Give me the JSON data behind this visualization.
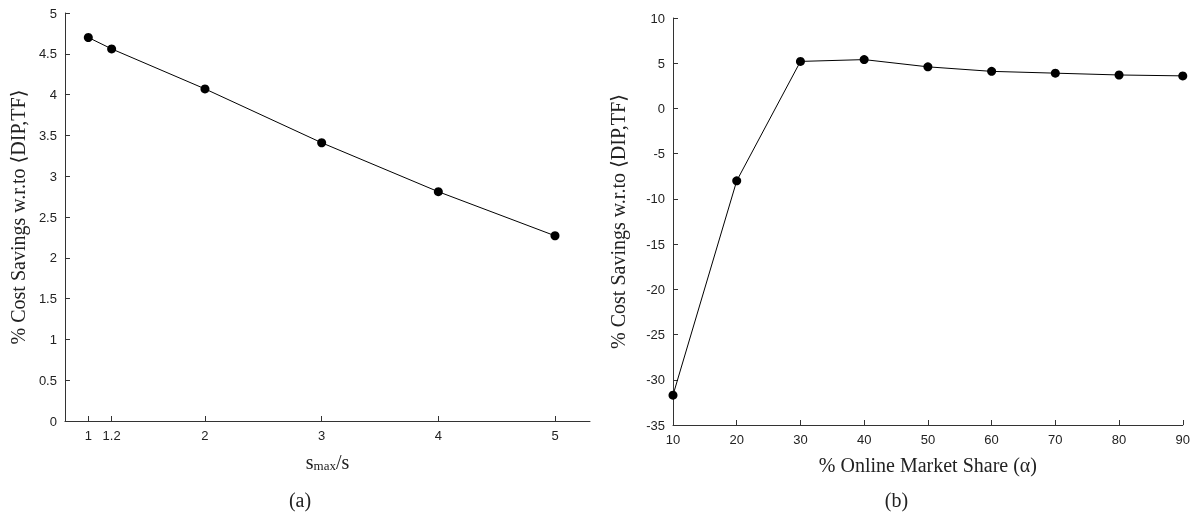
{
  "chart_data": [
    {
      "type": "line",
      "xlabel": "s$_{max}$/s",
      "ylabel": "% Cost Savings w.r.to ⟨DIP,TF⟩",
      "annotations": [
        "(a)"
      ],
      "x": [
        1,
        1.2,
        2,
        3,
        4,
        5
      ],
      "series": [
        {
          "color": "#000000",
          "values": [
            4.7,
            4.56,
            4.07,
            3.41,
            2.81,
            2.27
          ]
        }
      ],
      "xlim": [
        0.8,
        5.3
      ],
      "ylim": [
        0,
        5
      ],
      "xticks": [
        1,
        1.2,
        2,
        3,
        4,
        5
      ],
      "yticks": [
        0,
        0.5,
        1,
        1.5,
        2,
        2.5,
        3,
        3.5,
        4,
        4.5,
        5
      ],
      "marker": "circle",
      "line_style": "solid"
    },
    {
      "type": "line",
      "xlabel": "% Online Market Share (α)",
      "ylabel": "% Cost Savings w.r.to ⟨DIP,TF⟩",
      "annotations": [
        "(b)"
      ],
      "x": [
        10,
        20,
        30,
        40,
        50,
        60,
        70,
        80,
        90
      ],
      "series": [
        {
          "color": "#000000",
          "values": [
            -31.7,
            -8,
            5.2,
            5.4,
            4.6,
            4.1,
            3.9,
            3.7,
            3.6
          ]
        }
      ],
      "xlim": [
        10,
        90
      ],
      "ylim": [
        -35,
        10
      ],
      "xticks": [
        10,
        20,
        30,
        40,
        50,
        60,
        70,
        80,
        90
      ],
      "yticks": [
        -35,
        -30,
        -25,
        -20,
        -15,
        -10,
        -5,
        0,
        5,
        10
      ],
      "marker": "circle",
      "line_style": "solid"
    }
  ]
}
